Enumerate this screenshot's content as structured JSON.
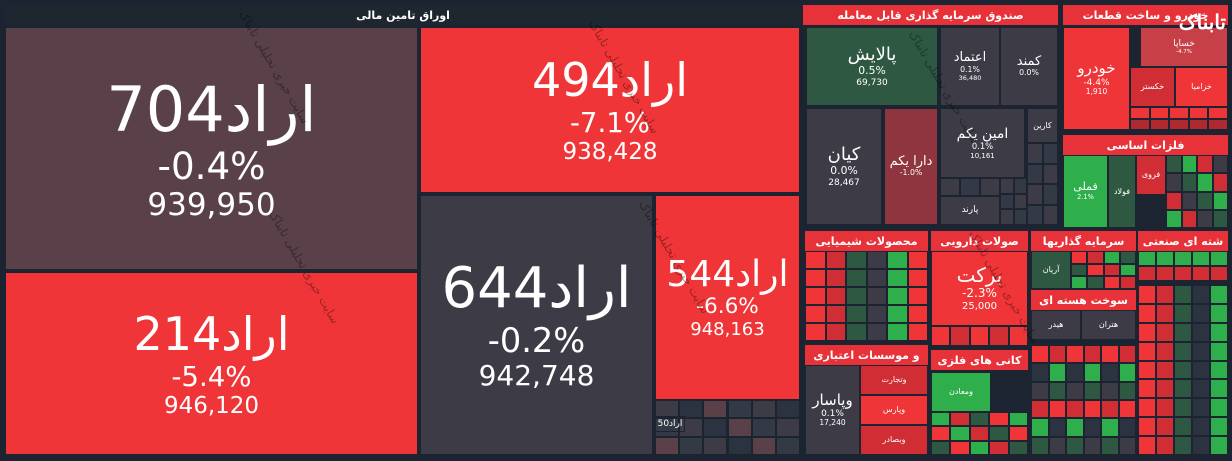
{
  "sectors": [
    {
      "title": "اوراق تامین مالی",
      "tiles": [
        {
          "name": "اراد704",
          "change": "-0.4%",
          "volume": "939,950"
        },
        {
          "name": "اراد214",
          "change": "-5.4%",
          "volume": "946,120"
        },
        {
          "name": "اراد494",
          "change": "-7.1%",
          "volume": "938,428"
        },
        {
          "name": "اراد644",
          "change": "-0.2%",
          "volume": "942,748"
        },
        {
          "name": "اراد544",
          "change": "-6.6%",
          "volume": "948,163"
        },
        {
          "name": "اراد50"
        }
      ]
    },
    {
      "title": "صندوق سرمایه گذاری قابل معامله",
      "tiles": [
        {
          "name": "پالایش",
          "change": "0.5%",
          "volume": "69,730"
        },
        {
          "name": "اعتماد",
          "change": "0.1%",
          "volume": "36,480"
        },
        {
          "name": "کمند",
          "change": "0.0%"
        },
        {
          "name": "کیان",
          "change": "0.0%",
          "volume": "28,467"
        },
        {
          "name": "دارا یکم",
          "change": "-1.0%"
        },
        {
          "name": "امین یکم",
          "change": "0.1%",
          "volume": "10,161"
        },
        {
          "name": "کارین"
        },
        {
          "name": "پارند"
        }
      ]
    },
    {
      "title": "خودرو و ساخت قطعات",
      "tiles": [
        {
          "name": "خساپا",
          "change": "-4.7%"
        },
        {
          "name": "خودرو",
          "change": "-4.4%",
          "volume": "1,910"
        },
        {
          "name": "خکستر"
        },
        {
          "name": "خزامیا"
        }
      ]
    },
    {
      "title": "فلزات اساسی",
      "tiles": [
        {
          "name": "فملی",
          "change": "2.1%"
        },
        {
          "name": "فولاد"
        },
        {
          "name": "فروی"
        }
      ]
    },
    {
      "title": "محصولات شیمیایی",
      "tiles": []
    },
    {
      "title": "صولات دارویی",
      "tiles": [
        {
          "name": "برکت",
          "change": "-2.3%",
          "volume": "25,000"
        }
      ]
    },
    {
      "title": "سرمایه گذاریها",
      "tiles": [
        {
          "name": "آریان"
        }
      ]
    },
    {
      "title": "شته ای صنعتی",
      "tiles": []
    },
    {
      "title": "سوخت هسته ای",
      "tiles": [
        {
          "name": "هیدر"
        },
        {
          "name": "هتران"
        }
      ]
    },
    {
      "title": "و موسسات اعتباری",
      "tiles": [
        {
          "name": "وپاسار",
          "change": "0.1%",
          "volume": "17,240"
        },
        {
          "name": "وتجارت"
        },
        {
          "name": "وپارس"
        },
        {
          "name": "وبصادر"
        }
      ]
    },
    {
      "title": "کانی های فلزی",
      "tiles": [
        {
          "name": "ومعادن"
        }
      ]
    }
  ],
  "watermark": "سایت خبری تحلیلی تابناک",
  "logo": "تابناک"
}
